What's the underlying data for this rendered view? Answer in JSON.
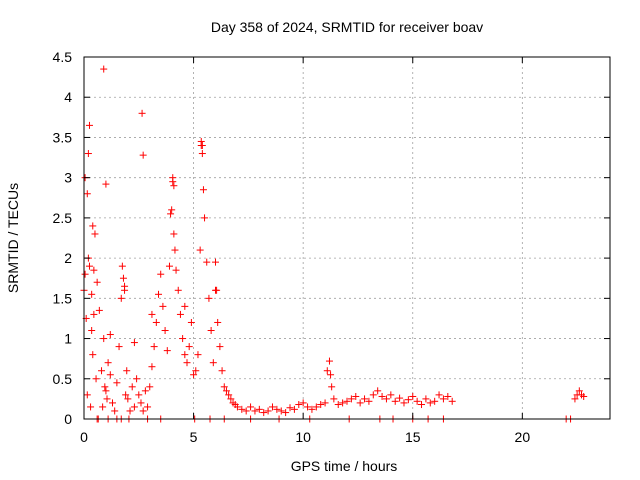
{
  "chart_data": {
    "type": "scatter",
    "title": "Day 358 of 2024, SRMTID for receiver boav",
    "xlabel": "GPS time / hours",
    "ylabel": "SRMTID / TECUs",
    "xlim": [
      0,
      24
    ],
    "ylim": [
      0,
      4.5
    ],
    "xticks": [
      0,
      5,
      10,
      15,
      20
    ],
    "xtick_labels": [
      "0",
      "5",
      "10",
      "15",
      "20"
    ],
    "yticks": [
      0,
      0.5,
      1,
      1.5,
      2,
      2.5,
      3,
      3.5,
      4,
      4.5
    ],
    "ytick_labels": [
      "0",
      "0.5",
      "1",
      "1.5",
      "2",
      "2.5",
      "3",
      "3.5",
      "4",
      "4.5"
    ],
    "grid": true,
    "marker": "+",
    "color": "#ff0000",
    "series": [
      {
        "name": "SRMTID",
        "x": [
          0.0,
          0.05,
          0.1,
          0.15,
          0.2,
          0.25,
          0.3,
          0.35,
          0.4,
          0.45,
          0.5,
          0.55,
          0.6,
          0.7,
          0.8,
          0.85,
          0.9,
          0.95,
          1.0,
          1.05,
          1.1,
          1.2,
          1.3,
          1.4,
          1.5,
          1.6,
          1.7,
          1.8,
          1.85,
          1.9,
          1.95,
          2.0,
          2.1,
          2.2,
          2.3,
          2.4,
          2.5,
          2.6,
          2.7,
          2.8,
          2.9,
          3.0,
          3.1,
          3.2,
          3.3,
          3.4,
          3.5,
          3.6,
          3.7,
          3.8,
          3.9,
          4.0,
          4.05,
          4.1,
          4.15,
          4.2,
          4.3,
          4.4,
          4.5,
          4.6,
          4.7,
          4.8,
          4.9,
          5.0,
          5.1,
          5.2,
          5.3,
          5.35,
          5.4,
          5.45,
          5.5,
          5.6,
          5.7,
          5.8,
          5.9,
          6.0,
          6.1,
          6.2,
          6.3,
          6.4,
          6.5,
          6.6,
          6.7,
          6.8,
          6.9,
          7.0,
          7.2,
          7.4,
          7.6,
          7.8,
          8.0,
          8.2,
          8.4,
          8.6,
          8.8,
          9.0,
          9.2,
          9.4,
          9.6,
          9.8,
          10.0,
          10.2,
          10.4,
          10.6,
          10.8,
          11.0,
          11.1,
          11.2,
          11.25,
          11.3,
          11.4,
          11.6,
          11.8,
          12.0,
          12.2,
          12.4,
          12.6,
          12.8,
          13.0,
          13.2,
          13.4,
          13.6,
          13.8,
          14.0,
          14.2,
          14.4,
          14.6,
          14.8,
          15.0,
          15.2,
          15.4,
          15.6,
          15.8,
          16.0,
          16.2,
          16.4,
          16.6,
          16.8,
          22.4,
          22.5,
          22.6,
          22.7,
          22.8,
          0.25,
          0.2,
          0.15,
          0.4,
          0.05,
          0.9,
          1.0,
          2.65,
          2.7,
          5.35,
          5.4,
          0.45,
          0.35,
          1.75,
          1.85,
          3.95,
          4.05,
          4.1,
          6.0,
          6.05,
          1.2,
          2.3,
          3.1,
          4.6,
          0.6,
          1.7,
          5.05,
          0.65,
          1.1,
          1.5,
          2.05,
          2.9,
          3.5,
          5.75,
          6.4,
          7.6,
          8.9,
          10.3,
          12.1,
          13.5,
          14.1,
          15.0,
          15.7,
          16.4,
          22.0,
          22.2
        ],
        "y": [
          1.6,
          1.8,
          1.25,
          0.3,
          2.0,
          1.9,
          0.15,
          1.1,
          0.8,
          1.3,
          2.3,
          0.5,
          1.7,
          1.35,
          0.6,
          0.15,
          1.0,
          0.4,
          0.35,
          0.25,
          0.7,
          0.55,
          0.2,
          0.1,
          0.45,
          0.9,
          1.5,
          1.75,
          1.65,
          0.3,
          0.6,
          0.25,
          0.1,
          0.4,
          0.15,
          0.5,
          0.3,
          0.2,
          0.1,
          0.35,
          0.15,
          0.4,
          0.65,
          0.9,
          1.2,
          1.55,
          1.8,
          1.4,
          1.1,
          0.85,
          1.9,
          2.6,
          2.95,
          2.3,
          2.1,
          1.85,
          1.6,
          1.3,
          1.0,
          0.8,
          0.7,
          0.9,
          1.2,
          0.55,
          0.6,
          0.8,
          2.1,
          3.4,
          3.3,
          2.85,
          2.5,
          1.95,
          1.5,
          1.1,
          0.7,
          1.6,
          1.2,
          0.9,
          0.6,
          0.4,
          0.35,
          0.3,
          0.25,
          0.2,
          0.18,
          0.15,
          0.12,
          0.1,
          0.15,
          0.1,
          0.12,
          0.08,
          0.1,
          0.15,
          0.12,
          0.1,
          0.08,
          0.14,
          0.12,
          0.18,
          0.2,
          0.15,
          0.12,
          0.15,
          0.18,
          0.2,
          0.6,
          0.72,
          0.55,
          0.4,
          0.25,
          0.18,
          0.2,
          0.22,
          0.25,
          0.28,
          0.2,
          0.25,
          0.22,
          0.3,
          0.35,
          0.28,
          0.25,
          0.3,
          0.22,
          0.26,
          0.2,
          0.24,
          0.28,
          0.22,
          0.18,
          0.25,
          0.2,
          0.22,
          0.3,
          0.25,
          0.28,
          0.22,
          0.25,
          0.3,
          0.35,
          0.3,
          0.28,
          3.65,
          3.3,
          2.8,
          2.4,
          3.0,
          4.35,
          2.92,
          3.8,
          3.28,
          3.45,
          3.4,
          1.85,
          1.55,
          1.9,
          1.6,
          2.55,
          3.0,
          2.9,
          1.95,
          1.6,
          1.05,
          0.95,
          1.3,
          1.4,
          0.0,
          0.0,
          0.0,
          0.0,
          0.0,
          0.0,
          0.0,
          0.0,
          0.0,
          0.0,
          0.0,
          0.0,
          0.0,
          0.0,
          0.0,
          0.0,
          0.0,
          0.0,
          0.0,
          0.0,
          0.0,
          0.0
        ]
      }
    ]
  }
}
